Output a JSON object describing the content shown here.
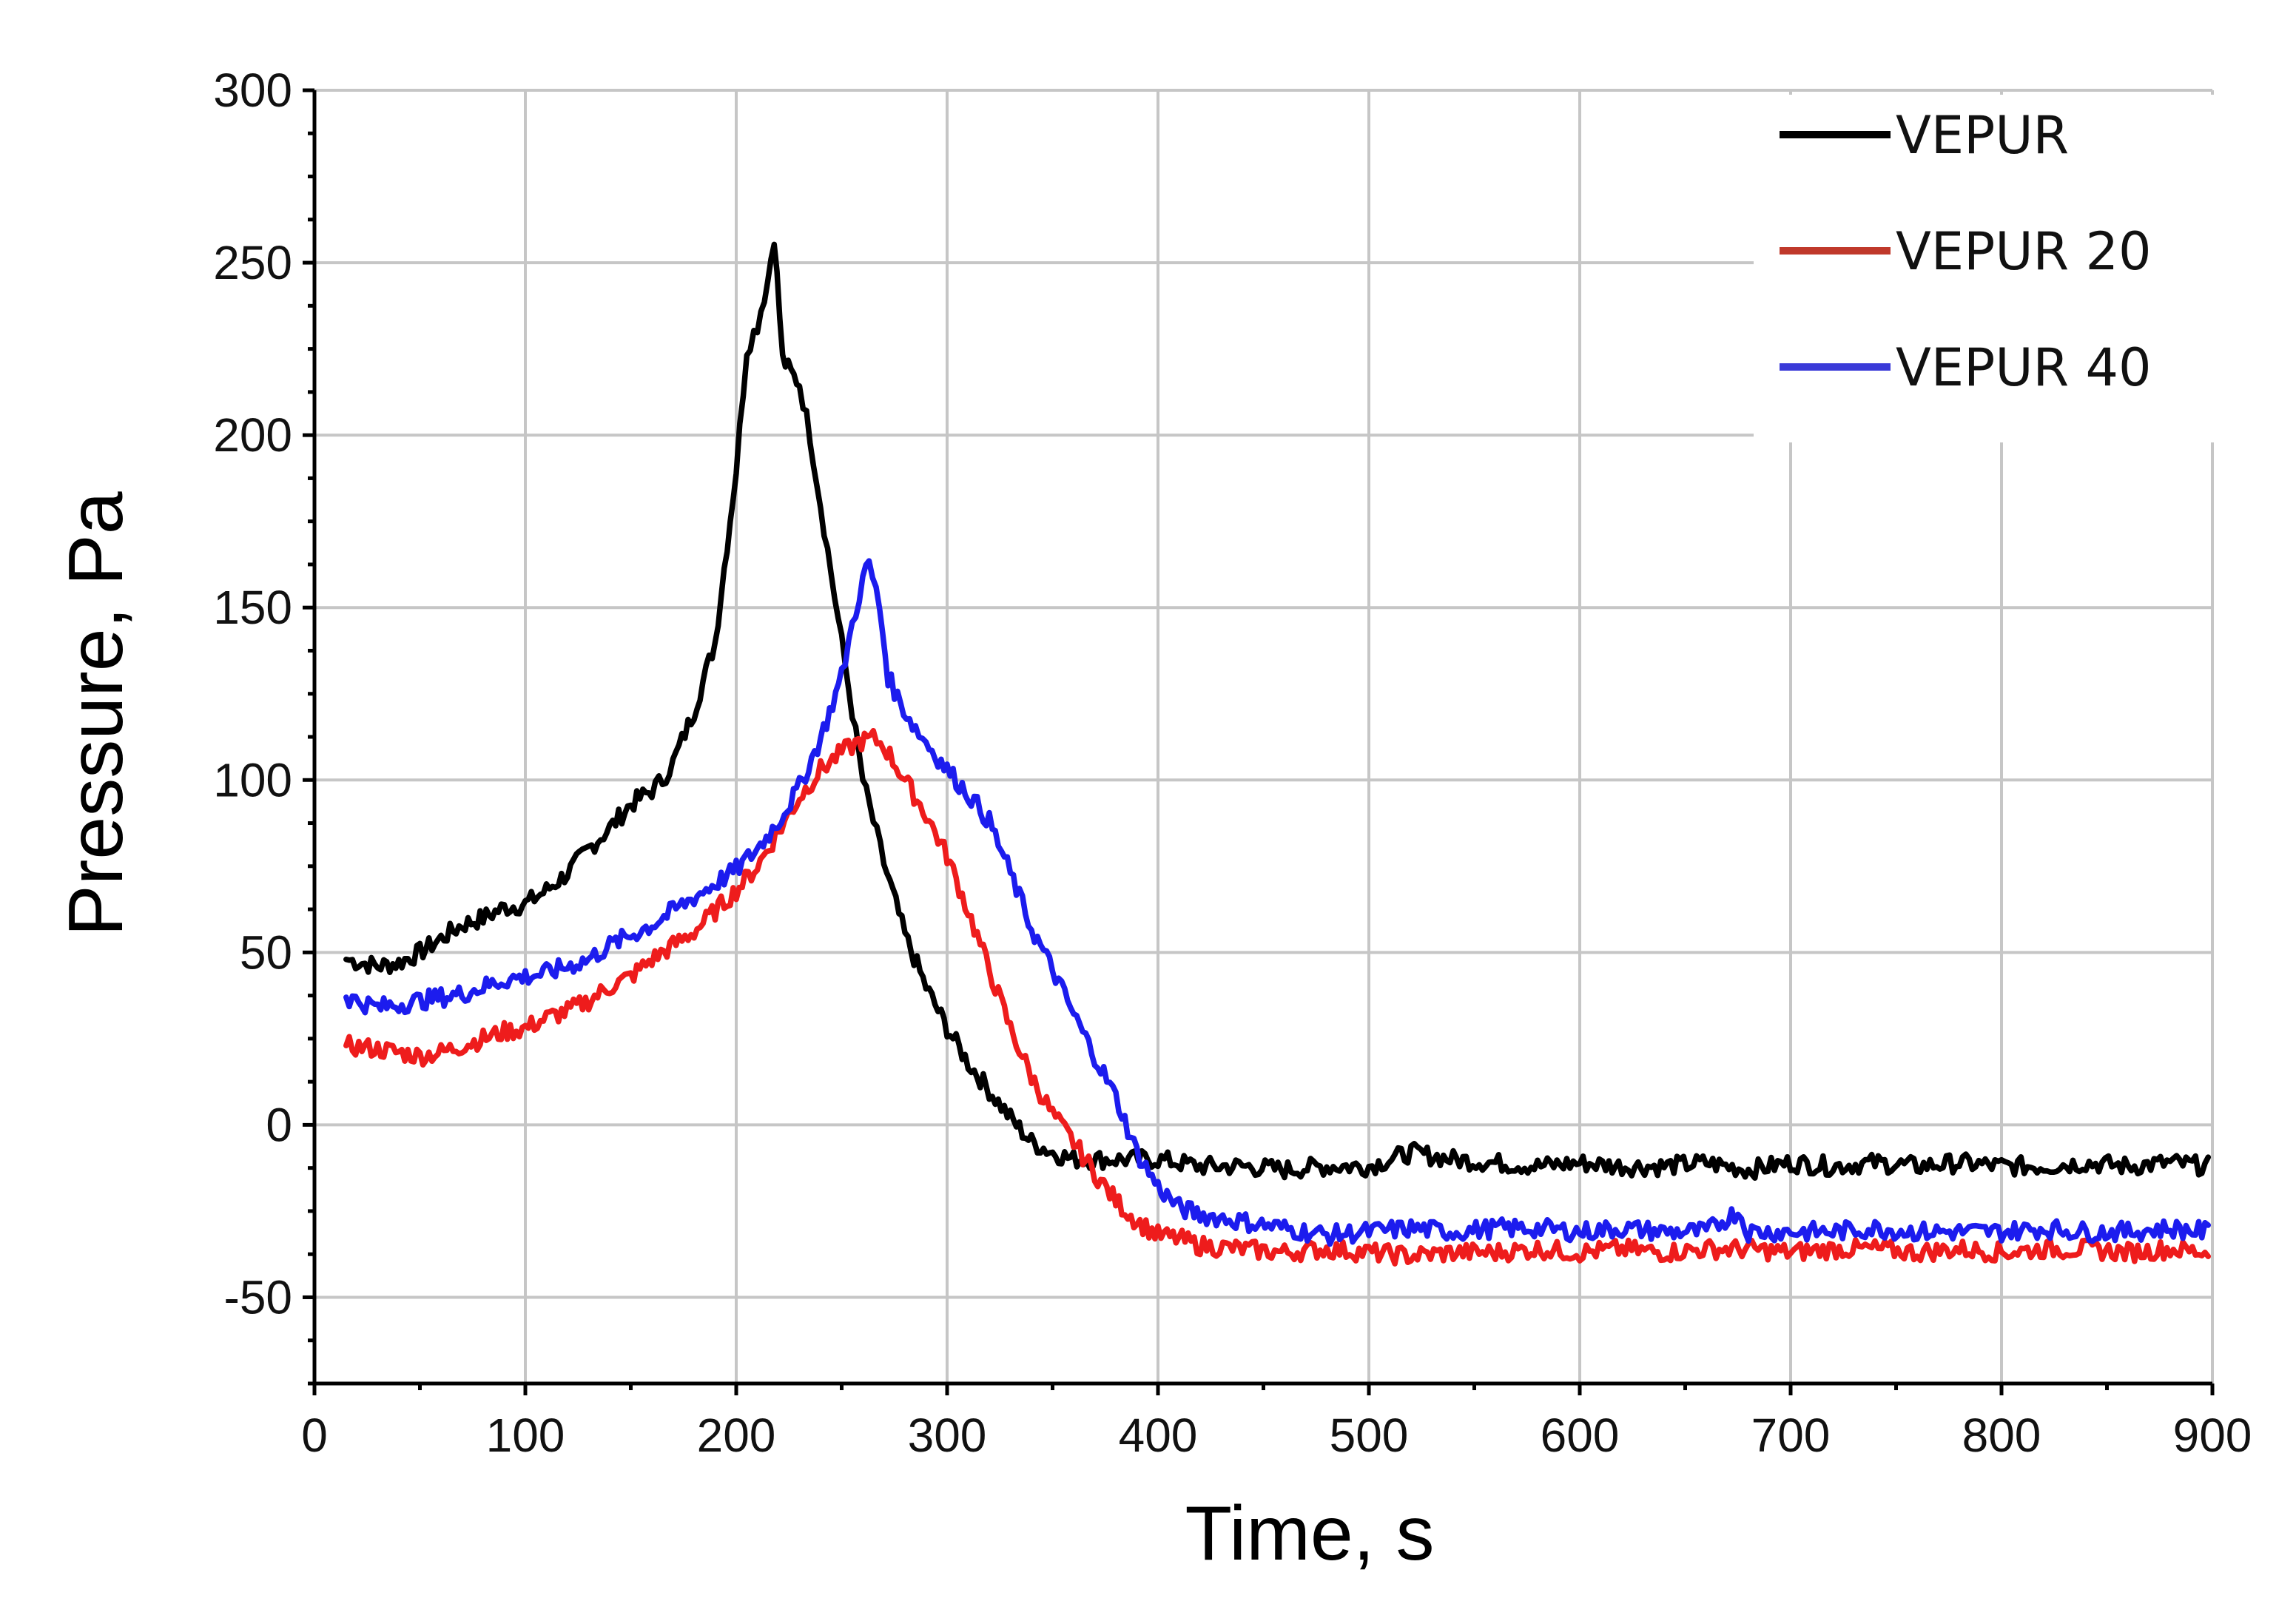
{
  "chart_data": {
    "type": "line",
    "title": "",
    "xlabel": "Time, s",
    "ylabel": "Pressure, Pa",
    "xlim": [
      0,
      900
    ],
    "ylim": [
      -75,
      300
    ],
    "xticks": [
      0,
      100,
      200,
      300,
      400,
      500,
      600,
      700,
      800,
      900
    ],
    "yticks": [
      -50,
      0,
      50,
      100,
      150,
      200,
      250,
      300
    ],
    "xtick_labels": [
      "0",
      "100",
      "200",
      "300",
      "400",
      "500",
      "600",
      "700",
      "800",
      "900"
    ],
    "ytick_labels": [
      "-50",
      "0",
      "50",
      "100",
      "150",
      "200",
      "250",
      "300"
    ],
    "grid": true,
    "legend_position": "top-right",
    "series": [
      {
        "name": "VEPUR",
        "color": "#000000",
        "x": [
          15,
          30,
          40,
          50,
          60,
          70,
          80,
          90,
          100,
          110,
          120,
          130,
          140,
          150,
          160,
          165,
          170,
          180,
          190,
          200,
          205,
          210,
          215,
          218,
          222,
          226,
          230,
          235,
          240,
          245,
          250,
          255,
          260,
          265,
          270,
          280,
          290,
          300,
          310,
          320,
          330,
          340,
          350,
          360,
          380,
          400,
          420,
          440,
          460,
          480,
          500,
          520,
          540,
          560,
          580,
          600,
          620,
          640,
          660,
          680,
          700,
          720,
          740,
          760,
          780,
          800,
          820,
          840,
          860,
          880,
          898
        ],
        "y": [
          48,
          46,
          47,
          50,
          54,
          58,
          60,
          63,
          64,
          68,
          73,
          80,
          86,
          93,
          97,
          100,
          105,
          120,
          140,
          190,
          225,
          232,
          245,
          258,
          222,
          218,
          215,
          200,
          180,
          160,
          140,
          120,
          100,
          88,
          76,
          55,
          40,
          28,
          18,
          10,
          2,
          -5,
          -8,
          -10,
          -10,
          -10,
          -12,
          -12,
          -13,
          -12,
          -12,
          -8,
          -10,
          -11,
          -12,
          -11,
          -12,
          -12,
          -11,
          -13,
          -11,
          -12,
          -11,
          -12,
          -11,
          -12,
          -12,
          -11,
          -12,
          -11,
          -12
        ]
      },
      {
        "name": "VEPUR 20",
        "color": "#ee1c1c",
        "x": [
          15,
          30,
          40,
          50,
          60,
          70,
          80,
          90,
          100,
          110,
          120,
          130,
          140,
          150,
          160,
          170,
          180,
          190,
          200,
          210,
          220,
          230,
          240,
          250,
          258,
          265,
          270,
          280,
          290,
          300,
          310,
          320,
          330,
          340,
          350,
          360,
          370,
          380,
          390,
          400,
          410,
          420,
          440,
          460,
          480,
          500,
          520,
          540,
          560,
          580,
          600,
          620,
          640,
          660,
          680,
          700,
          720,
          740,
          760,
          780,
          800,
          820,
          840,
          860,
          880,
          898
        ],
        "y": [
          23,
          22,
          21,
          20,
          21,
          23,
          25,
          27,
          28,
          31,
          33,
          36,
          40,
          43,
          48,
          52,
          56,
          62,
          68,
          75,
          85,
          95,
          103,
          108,
          111,
          112,
          110,
          100,
          90,
          78,
          62,
          45,
          28,
          14,
          3,
          -5,
          -14,
          -22,
          -28,
          -32,
          -33,
          -35,
          -36,
          -37,
          -36,
          -37,
          -38,
          -37,
          -37,
          -36,
          -37,
          -36,
          -37,
          -36,
          -36,
          -37,
          -36,
          -36,
          -37,
          -36,
          -37,
          -36,
          -36,
          -37,
          -36,
          -37
        ]
      },
      {
        "name": "VEPUR 40",
        "color": "#1c1cee",
        "x": [
          15,
          30,
          40,
          50,
          60,
          70,
          80,
          90,
          100,
          110,
          120,
          130,
          140,
          150,
          160,
          170,
          180,
          190,
          200,
          210,
          220,
          230,
          240,
          250,
          255,
          260,
          263,
          268,
          272,
          278,
          285,
          290,
          300,
          310,
          320,
          330,
          340,
          350,
          360,
          370,
          380,
          390,
          400,
          410,
          420,
          440,
          460,
          480,
          500,
          520,
          540,
          560,
          580,
          600,
          620,
          640,
          660,
          675,
          680,
          700,
          720,
          740,
          760,
          780,
          800,
          820,
          840,
          860,
          880,
          898
        ],
        "y": [
          37,
          34,
          35,
          36,
          37,
          38,
          40,
          42,
          43,
          44,
          46,
          48,
          52,
          55,
          58,
          62,
          66,
          70,
          74,
          80,
          88,
          98,
          112,
          130,
          145,
          158,
          163,
          150,
          130,
          122,
          115,
          111,
          103,
          96,
          88,
          73,
          57,
          45,
          32,
          20,
          8,
          -8,
          -18,
          -24,
          -26,
          -28,
          -30,
          -32,
          -31,
          -30,
          -31,
          -30,
          -30,
          -31,
          -30,
          -31,
          -31,
          -25,
          -31,
          -31,
          -31,
          -30,
          -31,
          -31,
          -31,
          -30,
          -31,
          -31,
          -30,
          -31
        ]
      }
    ]
  }
}
